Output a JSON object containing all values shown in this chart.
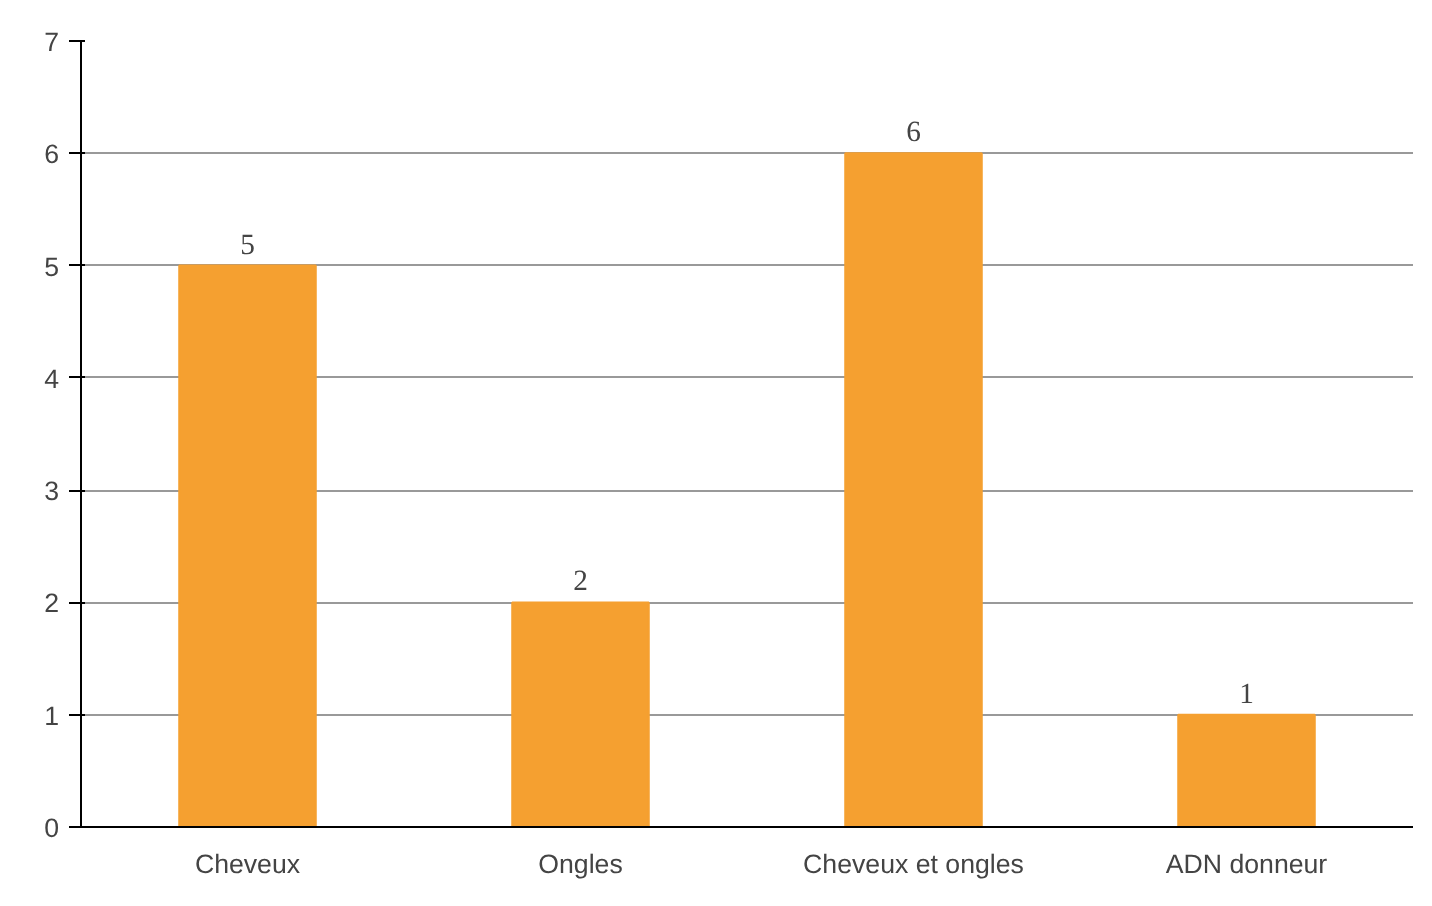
{
  "chart_data": {
    "type": "bar",
    "categories": [
      "Cheveux",
      "Ongles",
      "Cheveux et ongles",
      "ADN donneur"
    ],
    "values": [
      5,
      2,
      6,
      1
    ],
    "color": "#f5a030",
    "ylim": [
      0,
      7
    ],
    "yticks": [
      0,
      1,
      2,
      3,
      4,
      5,
      6,
      7
    ],
    "grid": "y",
    "data_labels": true
  }
}
